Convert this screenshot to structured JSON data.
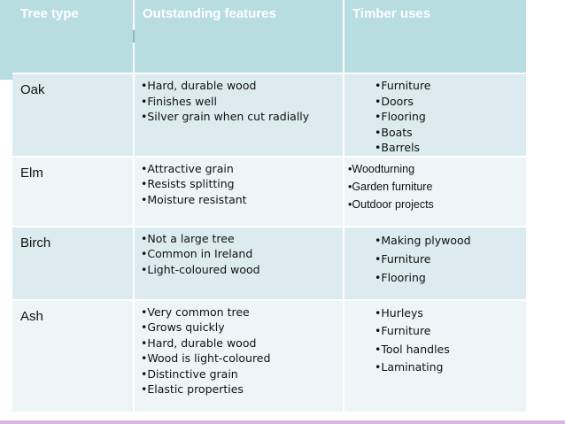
{
  "table": {
    "headers": [
      "Tree type",
      "Outstanding features",
      "Timber uses"
    ],
    "rows": [
      {
        "tree": "Oak",
        "features": [
          "Hard, durable wood",
          "Finishes well",
          "Silver grain when cut radially"
        ],
        "uses": [
          "Furniture",
          "Doors",
          "Flooring",
          "Boats",
          "Barrels"
        ]
      },
      {
        "tree": "Elm",
        "features": [
          "Attractive grain",
          "Resists splitting",
          "Moisture resistant"
        ],
        "uses": [
          "Woodturning",
          "Garden furniture",
          "Outdoor projects"
        ]
      },
      {
        "tree": "Birch",
        "features": [
          "Not a large tree",
          "Common in Ireland",
          "Light-coloured wood"
        ],
        "uses": [
          "Making plywood",
          "Furniture",
          "Flooring"
        ]
      },
      {
        "tree": "Ash",
        "features": [
          "Very common tree",
          "Grows quickly",
          "Hard, durable wood",
          "Wood is light-coloured",
          "Distinctive grain",
          "Elastic properties"
        ],
        "uses": [
          "Hurleys",
          "Furniture",
          "Tool handles",
          "Laminating"
        ]
      }
    ]
  },
  "colors": {
    "header_bg": "#b7dde1",
    "row_odd_bg": "#dcebef",
    "row_even_bg": "#eef5f7",
    "bottom_accent": "#d9b3e6"
  }
}
